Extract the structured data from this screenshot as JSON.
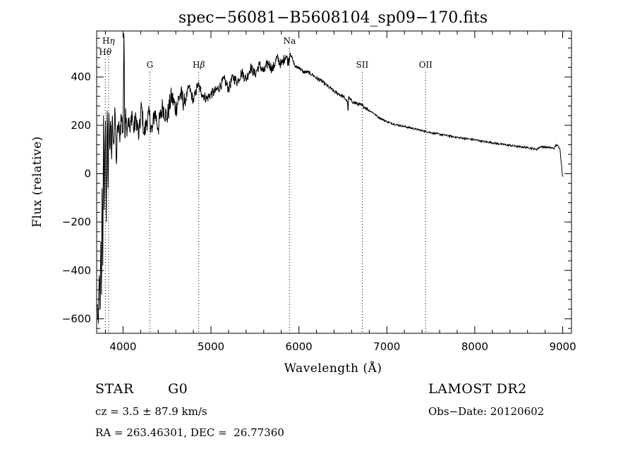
{
  "chart_data": {
    "type": "line",
    "title": "spec−56081−B5608104_sp09−170.fits",
    "xlabel": "Wavelength (Å)",
    "ylabel": "Flux (relative)",
    "xlim": [
      3700,
      9100
    ],
    "ylim": [
      -660,
      590
    ],
    "x_ticks": [
      4000,
      5000,
      6000,
      7000,
      8000,
      9000
    ],
    "y_ticks": [
      -600,
      -400,
      -200,
      0,
      200,
      400
    ],
    "grid": false,
    "line_color": "#000000",
    "series": [
      {
        "x": [
          3705,
          3720,
          3730,
          3740,
          3748,
          3755,
          3762,
          3770,
          3778,
          3785,
          3792,
          3800,
          3810,
          3820,
          3830,
          3840,
          3850,
          3860,
          3870,
          3880,
          3895,
          3910,
          3925,
          3940,
          3960,
          3980,
          4000,
          4010,
          4020,
          4030,
          4040,
          4060,
          4080,
          4100,
          4120,
          4150,
          4180,
          4210,
          4240,
          4270,
          4300,
          4330,
          4360,
          4400,
          4450,
          4500,
          4550,
          4600,
          4650,
          4700,
          4750,
          4800,
          4850,
          4900,
          4950,
          5000,
          5050,
          5100,
          5150,
          5200,
          5250,
          5300,
          5350,
          5400,
          5450,
          5500,
          5550,
          5600,
          5650,
          5700,
          5750,
          5800,
          5850,
          5880,
          5900,
          5930,
          5960,
          6000,
          6050,
          6100,
          6150,
          6200,
          6250,
          6300,
          6350,
          6400,
          6450,
          6500,
          6550,
          6560,
          6565,
          6570,
          6600,
          6650,
          6700,
          6750,
          6800,
          6850,
          6900,
          6950,
          7000,
          7100,
          7200,
          7300,
          7400,
          7500,
          7600,
          7700,
          7800,
          7900,
          8000,
          8100,
          8200,
          8300,
          8400,
          8500,
          8600,
          8650,
          8700,
          8750,
          8800,
          8850,
          8900,
          8930,
          8950,
          8970,
          8985,
          8995,
          9005
        ],
        "values": [
          -540,
          -620,
          -420,
          -560,
          -280,
          -500,
          -60,
          -380,
          240,
          -150,
          80,
          220,
          -200,
          260,
          -60,
          250,
          100,
          200,
          60,
          240,
          120,
          250,
          40,
          200,
          160,
          240,
          170,
          580,
          150,
          270,
          190,
          230,
          170,
          260,
          180,
          230,
          150,
          280,
          160,
          220,
          240,
          170,
          260,
          190,
          280,
          230,
          320,
          270,
          330,
          290,
          360,
          300,
          370,
          330,
          310,
          330,
          340,
          360,
          390,
          350,
          400,
          380,
          420,
          390,
          440,
          410,
          450,
          420,
          460,
          430,
          480,
          450,
          490,
          460,
          500,
          470,
          440,
          440,
          420,
          420,
          410,
          395,
          385,
          370,
          355,
          340,
          330,
          320,
          300,
          260,
          320,
          310,
          300,
          290,
          285,
          275,
          262,
          250,
          235,
          225,
          215,
          203,
          195,
          187,
          178,
          170,
          163,
          157,
          150,
          145,
          140,
          133,
          128,
          122,
          117,
          112,
          108,
          105,
          100,
          112,
          110,
          108,
          105,
          120,
          112,
          100,
          40,
          -5,
          -10
        ]
      }
    ],
    "line_marks": [
      {
        "label_sym": "H",
        "label_sub": "η",
        "x": 3835,
        "row": "top"
      },
      {
        "label_sym": "H",
        "label_sub": "θ",
        "x": 3798,
        "row": "second"
      },
      {
        "label_sym": "G",
        "label_sub": "",
        "x": 4305,
        "row": "third"
      },
      {
        "label_sym": "H",
        "label_sub": "β",
        "x": 4861,
        "row": "third"
      },
      {
        "label_sym": "Na",
        "label_sub": "",
        "x": 5893,
        "row": "top"
      },
      {
        "label_sym": "SII",
        "label_sub": "",
        "x": 6720,
        "row": "third"
      },
      {
        "label_sym": "OII",
        "label_sub": "",
        "x": 7441,
        "row": "third"
      }
    ]
  },
  "footer": {
    "object_class": "STAR",
    "subclass": "G0",
    "cz_line": "cz = 3.5 ± 87.9 km/s",
    "coords_line": "RA = 263.46301, DEC =  26.77360",
    "survey": "LAMOST DR2",
    "obs_date": "Obs−Date: 20120602"
  }
}
